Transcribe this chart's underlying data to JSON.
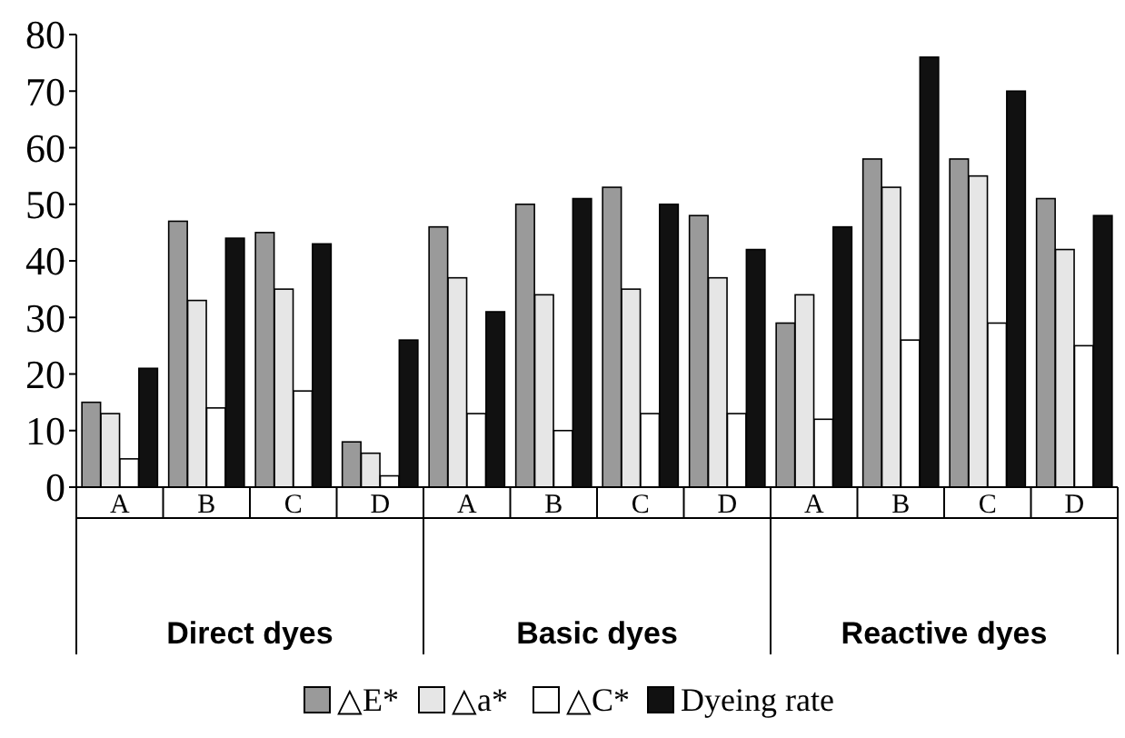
{
  "chart_data": {
    "type": "bar",
    "categories": [
      "A",
      "B",
      "C",
      "D",
      "A",
      "B",
      "C",
      "D",
      "A",
      "B",
      "C",
      "D"
    ],
    "series": [
      {
        "name": "△E*",
        "color": "#9a9a9a",
        "values": [
          15,
          47,
          45,
          8,
          46,
          50,
          53,
          48,
          29,
          58,
          58,
          51
        ]
      },
      {
        "name": "△a*",
        "color": "#e6e6e6",
        "values": [
          13,
          33,
          35,
          6,
          37,
          34,
          35,
          37,
          34,
          53,
          55,
          42
        ]
      },
      {
        "name": "△C*",
        "color": "#ffffff",
        "values": [
          5,
          14,
          17,
          2,
          13,
          10,
          13,
          13,
          12,
          26,
          29,
          25
        ]
      },
      {
        "name": "Dyeing rate",
        "color": "#111111",
        "values": [
          21,
          44,
          43,
          26,
          31,
          51,
          50,
          42,
          46,
          76,
          70,
          48
        ]
      }
    ],
    "ylim": [
      0,
      80
    ],
    "yticks": [
      0,
      10,
      20,
      30,
      40,
      50,
      60,
      70,
      80
    ],
    "grid": false,
    "legend": "bottom",
    "annotations": [
      "Direct dyes",
      "Basic dyes",
      "Reactive dyes"
    ]
  }
}
